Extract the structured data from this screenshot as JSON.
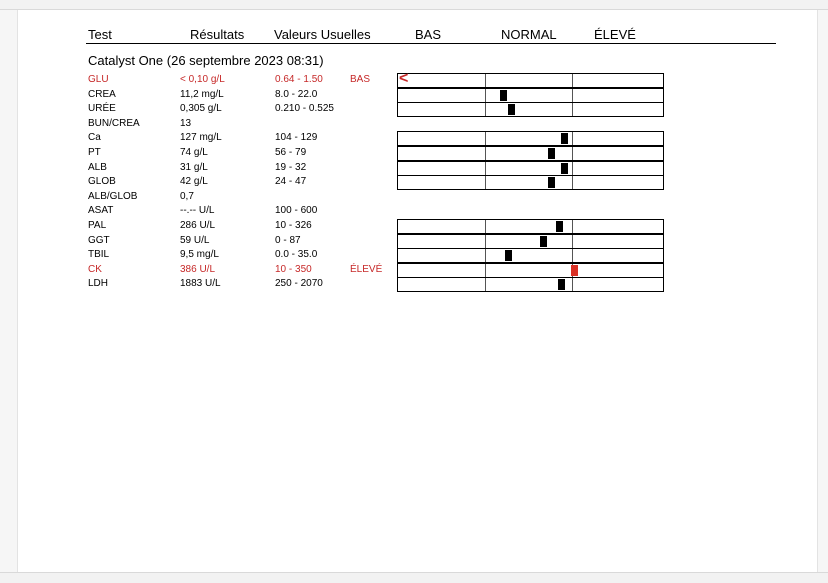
{
  "header": {
    "test": "Test",
    "results": "Résultats",
    "reference": "Valeurs Usuelles",
    "low": "BAS",
    "normal": "NORMAL",
    "high": "ÉLEVÉ"
  },
  "section_title": "Catalyst One (26 septembre 2023 08:31)",
  "colors": {
    "flag_red": "#c62828",
    "high_marker": "#d93025"
  },
  "rows": [
    {
      "test": "GLU",
      "result": "< 0,10 g/L",
      "reference": "0.64 - 1.50",
      "flag": "BAS",
      "status": "low",
      "bar": true,
      "level": 0.0,
      "glyph": "<"
    },
    {
      "test": "CREA",
      "result": "11,2 mg/L",
      "reference": "8.0 - 22.0",
      "flag": "",
      "status": "normal",
      "bar": true,
      "level": 0.4
    },
    {
      "test": "URÉE",
      "result": "0,305 g/L",
      "reference": "0.210 - 0.525",
      "flag": "",
      "status": "normal",
      "bar": true,
      "level": 0.43
    },
    {
      "test": "BUN/CREA",
      "result": "13",
      "reference": "",
      "flag": "",
      "status": "normal",
      "bar": false
    },
    {
      "test": "Ca",
      "result": "127 mg/L",
      "reference": "104 - 129",
      "flag": "",
      "status": "normal",
      "bar": true,
      "level": 0.63
    },
    {
      "test": "PT",
      "result": "74 g/L",
      "reference": "56 - 79",
      "flag": "",
      "status": "normal",
      "bar": true,
      "level": 0.58
    },
    {
      "test": "ALB",
      "result": "31 g/L",
      "reference": "19 - 32",
      "flag": "",
      "status": "normal",
      "bar": true,
      "level": 0.63
    },
    {
      "test": "GLOB",
      "result": "42 g/L",
      "reference": "24 - 47",
      "flag": "",
      "status": "normal",
      "bar": true,
      "level": 0.58
    },
    {
      "test": "ALB/GLOB",
      "result": "0,7",
      "reference": "",
      "flag": "",
      "status": "normal",
      "bar": false
    },
    {
      "test": "ASAT",
      "result": "--.-- U/L",
      "reference": "100 - 600",
      "flag": "",
      "status": "normal",
      "bar": false
    },
    {
      "test": "PAL",
      "result": "286 U/L",
      "reference": "10 - 326",
      "flag": "",
      "status": "normal",
      "bar": true,
      "level": 0.61
    },
    {
      "test": "GGT",
      "result": "59 U/L",
      "reference": "0 - 87",
      "flag": "",
      "status": "normal",
      "bar": true,
      "level": 0.55
    },
    {
      "test": "TBIL",
      "result": "9,5 mg/L",
      "reference": "0.0 - 35.0",
      "flag": "",
      "status": "normal",
      "bar": true,
      "level": 0.42
    },
    {
      "test": "CK",
      "result": "386 U/L",
      "reference": "10 - 350",
      "flag": "ÉLEVÉ",
      "status": "high",
      "bar": true,
      "level": 0.67
    },
    {
      "test": "LDH",
      "result": "1883 U/L",
      "reference": "250 - 2070",
      "flag": "",
      "status": "normal",
      "bar": true,
      "level": 0.62
    }
  ]
}
